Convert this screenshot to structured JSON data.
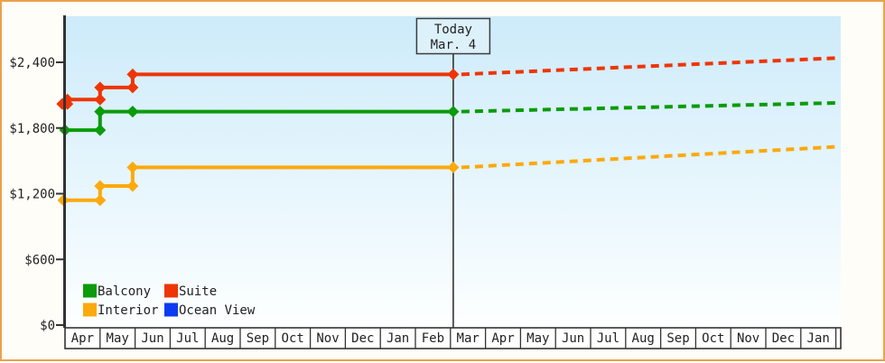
{
  "chart_data": {
    "type": "line",
    "subtype": "step-after-price-history",
    "title": "",
    "today": {
      "label_line1": "Today",
      "label_line2": "Mar. 4",
      "month_offset": 11.08
    },
    "y_axis": {
      "ticks": [
        {
          "label": "$0",
          "value": 0
        },
        {
          "label": "$600",
          "value": 600
        },
        {
          "label": "$1,200",
          "value": 1200
        },
        {
          "label": "$1,800",
          "value": 1800
        },
        {
          "label": "$2,400",
          "value": 2400
        }
      ],
      "min": 0,
      "max": 2820
    },
    "x_axis": {
      "months": [
        "Apr",
        "May",
        "Jun",
        "Jul",
        "Aug",
        "Sep",
        "Oct",
        "Nov",
        "Dec",
        "Jan",
        "Feb",
        "Mar",
        "Apr",
        "May",
        "Jun",
        "Jul",
        "Aug",
        "Sep",
        "Oct",
        "Nov",
        "Dec",
        "Jan"
      ]
    },
    "series": [
      {
        "name": "Balcony",
        "color": "#0b9b0b",
        "points": [
          [
            0,
            1780
          ],
          [
            1.0,
            1950
          ],
          [
            1.93,
            1950
          ]
        ],
        "price_today": 1950,
        "price_projected": 2030
      },
      {
        "name": "Suite",
        "color": "#ee3506",
        "points": [
          [
            -0.08,
            2020
          ],
          [
            0.07,
            2060
          ],
          [
            1.0,
            2170
          ],
          [
            1.93,
            2290
          ]
        ],
        "price_today": 2290,
        "price_projected": 2440
      },
      {
        "name": "Interior",
        "color": "#fca90d",
        "points": [
          [
            -0.05,
            1140
          ],
          [
            1.0,
            1270
          ],
          [
            1.93,
            1440
          ]
        ],
        "price_today": 1440,
        "price_projected": 1630
      },
      {
        "name": "Ocean View",
        "color": "#0b3cf0",
        "points": [],
        "price_today": null,
        "price_projected": null
      }
    ],
    "legend": {
      "entries": [
        "Balcony",
        "Suite",
        "Interior",
        "Ocean View"
      ],
      "position": "bottom-left"
    },
    "colors": {
      "plot_bg_top": "#cdebfa",
      "plot_bg_bottom": "#fdffff",
      "axis": "#333333",
      "today_box_fill": "#ddf1fb",
      "frame_border": "#e9a24d"
    }
  }
}
